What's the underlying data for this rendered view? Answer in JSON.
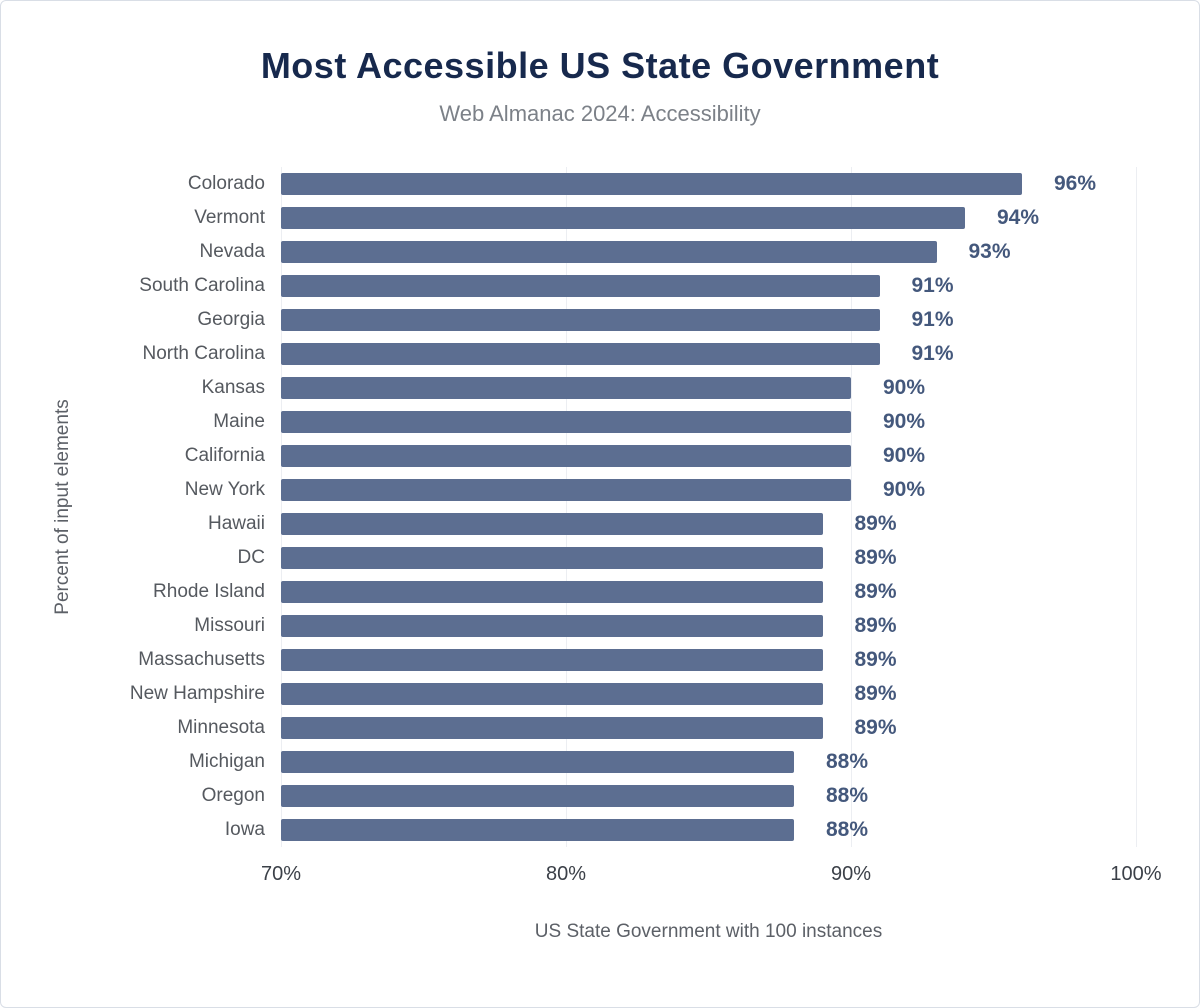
{
  "title": "Most Accessible US State Government",
  "subtitle": "Web Almanac 2024: Accessibility",
  "chart_data": {
    "type": "bar",
    "orientation": "horizontal",
    "title": "Most Accessible US State Government",
    "subtitle": "Web Almanac 2024: Accessibility",
    "categories": [
      "Colorado",
      "Vermont",
      "Nevada",
      "South Carolina",
      "Georgia",
      "North Carolina",
      "Kansas",
      "Maine",
      "California",
      "New York",
      "Hawaii",
      "DC",
      "Rhode Island",
      "Missouri",
      "Massachusetts",
      "New Hampshire",
      "Minnesota",
      "Michigan",
      "Oregon",
      "Iowa"
    ],
    "values": [
      96,
      94,
      93,
      91,
      91,
      91,
      90,
      90,
      90,
      90,
      89,
      89,
      89,
      89,
      89,
      89,
      89,
      88,
      88,
      88
    ],
    "value_suffix": "%",
    "xlabel": "US State Government with 100 instances",
    "ylabel": "Percent of input elements",
    "x_ticks": [
      "70%",
      "80%",
      "90%",
      "100%"
    ],
    "xlim": [
      70,
      100
    ],
    "grid": true,
    "legend": "none",
    "bar_color": "#5c6e91",
    "value_label_color": "#44587c",
    "title_color": "#17294d",
    "subtitle_color": "#7c8188"
  }
}
